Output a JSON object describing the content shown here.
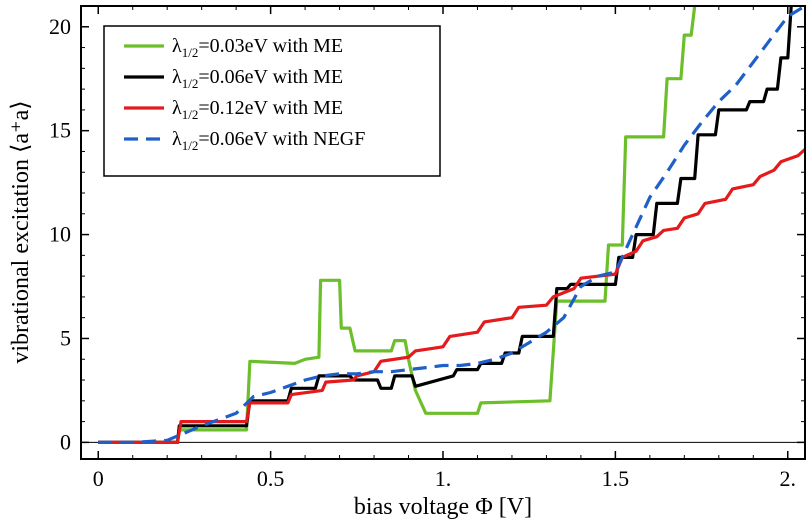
{
  "chart_data": {
    "type": "line",
    "xlabel": "bias voltage Φ [V]",
    "ylabel": "vibrational excitation ⟨a⁺a⟩",
    "xlim": [
      -0.05,
      2.05
    ],
    "ylim": [
      -0.8,
      21
    ],
    "x_ticks": [
      {
        "value": 0,
        "label": "0"
      },
      {
        "value": 0.5,
        "label": "0.5"
      },
      {
        "value": 1.0,
        "label": "1."
      },
      {
        "value": 1.5,
        "label": "1.5"
      },
      {
        "value": 2.0,
        "label": "2."
      }
    ],
    "y_ticks": [
      {
        "value": 0,
        "label": "0"
      },
      {
        "value": 5,
        "label": "5"
      },
      {
        "value": 10,
        "label": "10"
      },
      {
        "value": 15,
        "label": "15"
      },
      {
        "value": 20,
        "label": "20"
      }
    ],
    "zero_line": 0,
    "legend": {
      "position": "top-left"
    },
    "series": [
      {
        "name": "λ1/2=0.03eV with ME",
        "label_main": "λ",
        "label_sub": "1/2",
        "label_rest": "=0.03eV with ME",
        "color": "#6cbf2a",
        "dash": "solid",
        "x": [
          0,
          0.23,
          0.235,
          0.43,
          0.44,
          0.57,
          0.6,
          0.64,
          0.645,
          0.7,
          0.705,
          0.73,
          0.745,
          0.85,
          0.86,
          0.89,
          0.9,
          0.92,
          0.95,
          1.1,
          1.11,
          1.31,
          1.33,
          1.47,
          1.48,
          1.52,
          1.53,
          1.64,
          1.65,
          1.69,
          1.7,
          1.72,
          1.73
        ],
        "y": [
          0,
          0,
          0.6,
          0.6,
          3.9,
          3.8,
          4.0,
          4.1,
          7.8,
          7.8,
          5.5,
          5.5,
          4.4,
          4.4,
          4.9,
          4.9,
          4.0,
          2.5,
          1.4,
          1.4,
          1.9,
          2.0,
          6.8,
          6.8,
          9.5,
          9.5,
          14.7,
          14.7,
          17.5,
          17.5,
          19.6,
          19.6,
          21
        ]
      },
      {
        "name": "λ1/2=0.06eV with ME",
        "label_main": "λ",
        "label_sub": "1/2",
        "label_rest": "=0.06eV with ME",
        "color": "#000000",
        "dash": "solid",
        "x": [
          0,
          0.23,
          0.235,
          0.43,
          0.44,
          0.55,
          0.56,
          0.63,
          0.64,
          0.73,
          0.74,
          0.81,
          0.82,
          0.85,
          0.86,
          0.91,
          0.92,
          1.03,
          1.04,
          1.1,
          1.11,
          1.17,
          1.18,
          1.22,
          1.23,
          1.32,
          1.33,
          1.36,
          1.37,
          1.5,
          1.51,
          1.55,
          1.56,
          1.61,
          1.62,
          1.68,
          1.69,
          1.73,
          1.74,
          1.79,
          1.8,
          1.88,
          1.89,
          1.93,
          1.94,
          1.97,
          1.98,
          2.0,
          2.01
        ],
        "y": [
          0,
          0,
          0.8,
          0.8,
          2.0,
          2.0,
          2.6,
          2.6,
          3.2,
          3.2,
          3.0,
          3.0,
          2.6,
          2.6,
          3.2,
          3.2,
          2.7,
          3.2,
          3.5,
          3.5,
          3.8,
          3.8,
          4.3,
          4.3,
          5.1,
          5.1,
          7.4,
          7.4,
          7.6,
          7.6,
          8.9,
          8.9,
          10.0,
          10.0,
          11.5,
          11.5,
          12.7,
          12.7,
          14.8,
          14.8,
          16.0,
          16.0,
          16.4,
          16.4,
          17.0,
          17.0,
          18.5,
          18.5,
          21
        ]
      },
      {
        "name": "λ1/2=0.12eV with ME",
        "label_main": "λ",
        "label_sub": "1/2",
        "label_rest": "=0.12eV with ME",
        "color": "#e41a1c",
        "dash": "solid",
        "x": [
          0,
          0.23,
          0.24,
          0.43,
          0.44,
          0.55,
          0.56,
          0.65,
          0.66,
          0.74,
          0.75,
          0.8,
          0.82,
          0.9,
          0.92,
          1.0,
          1.02,
          1.1,
          1.12,
          1.2,
          1.22,
          1.3,
          1.32,
          1.38,
          1.4,
          1.5,
          1.52,
          1.56,
          1.58,
          1.62,
          1.64,
          1.68,
          1.7,
          1.74,
          1.76,
          1.82,
          1.84,
          1.9,
          1.92,
          1.96,
          1.98,
          2.03,
          2.05
        ],
        "y": [
          0,
          0,
          1.0,
          1.0,
          1.9,
          1.9,
          2.3,
          2.5,
          2.9,
          3.0,
          3.2,
          3.4,
          3.9,
          4.1,
          4.4,
          4.6,
          5.1,
          5.3,
          5.8,
          6.0,
          6.5,
          6.6,
          7.0,
          7.4,
          7.9,
          8.1,
          8.9,
          9.2,
          9.7,
          9.9,
          10.2,
          10.3,
          10.8,
          11.0,
          11.5,
          11.7,
          12.2,
          12.4,
          12.8,
          13.1,
          13.5,
          13.8,
          14.1
        ]
      },
      {
        "name": "λ1/2=0.06eV with NEGF",
        "label_main": "λ",
        "label_sub": "1/2",
        "label_rest": "=0.06eV with NEGF",
        "color": "#1f5fc8",
        "dash": "dashed",
        "x": [
          0,
          0.1,
          0.2,
          0.3,
          0.4,
          0.45,
          0.5,
          0.55,
          0.6,
          0.65,
          0.7,
          0.75,
          0.8,
          0.85,
          0.9,
          0.95,
          1.0,
          1.05,
          1.1,
          1.15,
          1.2,
          1.25,
          1.3,
          1.35,
          1.4,
          1.45,
          1.5,
          1.55,
          1.6,
          1.65,
          1.7,
          1.75,
          1.8,
          1.85,
          1.9,
          1.95,
          2.0,
          2.05
        ],
        "y": [
          0,
          0.0,
          0.1,
          0.8,
          1.4,
          2.2,
          2.4,
          2.7,
          3.0,
          3.2,
          3.3,
          3.3,
          3.4,
          3.4,
          3.5,
          3.6,
          3.7,
          3.7,
          3.8,
          4.0,
          4.3,
          4.8,
          5.3,
          6.0,
          7.5,
          8.0,
          8.2,
          10.0,
          11.8,
          13.0,
          14.3,
          15.4,
          16.4,
          17.2,
          18.3,
          19.4,
          20.5,
          21
        ]
      }
    ]
  }
}
